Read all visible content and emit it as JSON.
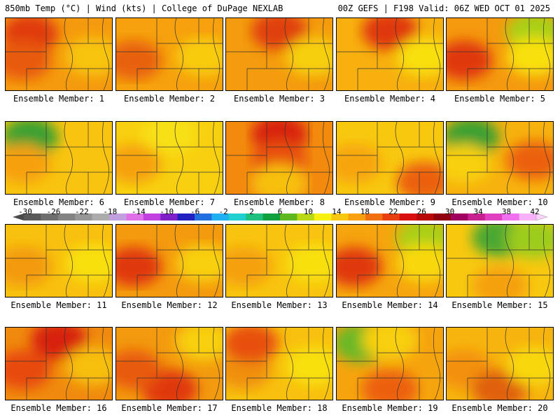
{
  "header": {
    "left": "850mb Temp (°C) | Wind (kts) | College of DuPage NEXLAB",
    "right": "00Z GEFS | F198 Valid: 06Z WED OCT 01 2025"
  },
  "label_prefix": "Ensemble Member: ",
  "members": [
    {
      "id": "1",
      "label": "Ensemble Member: 1",
      "base": "#f59a0e",
      "blobs": [
        [
          "#e03a10",
          "NW"
        ],
        [
          "#e85a10",
          "W"
        ],
        [
          "#f7c510",
          "E"
        ]
      ]
    },
    {
      "id": "2",
      "label": "Ensemble Member: 2",
      "base": "#f6a10d",
      "blobs": [
        [
          "#e8600f",
          "W"
        ],
        [
          "#f8cc10",
          "E"
        ]
      ]
    },
    {
      "id": "3",
      "label": "Ensemble Member: 3",
      "base": "#f49c0d",
      "blobs": [
        [
          "#e0400f",
          "N"
        ],
        [
          "#f7d010",
          "E"
        ]
      ]
    },
    {
      "id": "4",
      "label": "Ensemble Member: 4",
      "base": "#f7b00e",
      "blobs": [
        [
          "#e0380f",
          "N"
        ],
        [
          "#f8e010",
          "E"
        ]
      ]
    },
    {
      "id": "5",
      "label": "Ensemble Member: 5",
      "base": "#f59a0e",
      "blobs": [
        [
          "#e0380f",
          "W"
        ],
        [
          "#a8d018",
          "NE"
        ],
        [
          "#f8e010",
          "E"
        ]
      ]
    },
    {
      "id": "6",
      "label": "Ensemble Member: 6",
      "base": "#f8c40f",
      "blobs": [
        [
          "#3aa030",
          "NW"
        ],
        [
          "#f7a00e",
          "W"
        ]
      ]
    },
    {
      "id": "7",
      "label": "Ensemble Member: 7",
      "base": "#f8d010",
      "blobs": [
        [
          "#f5a00e",
          "W"
        ],
        [
          "#f8e018",
          "N"
        ]
      ]
    },
    {
      "id": "8",
      "label": "Ensemble Member: 8",
      "base": "#f38a0e",
      "blobs": [
        [
          "#d8200f",
          "N"
        ],
        [
          "#e8500f",
          "C"
        ],
        [
          "#f7c010",
          "S"
        ]
      ]
    },
    {
      "id": "9",
      "label": "Ensemble Member: 9",
      "base": "#f8c80f",
      "blobs": [
        [
          "#ec6010",
          "SE"
        ],
        [
          "#f7a50d",
          "W"
        ]
      ]
    },
    {
      "id": "10",
      "label": "Ensemble Member: 10",
      "base": "#f7b20e",
      "blobs": [
        [
          "#3aa030",
          "NW"
        ],
        [
          "#f8d010",
          "W"
        ],
        [
          "#ec6010",
          "E"
        ]
      ]
    },
    {
      "id": "11",
      "label": "Ensemble Member: 11",
      "base": "#f8c00f",
      "blobs": [
        [
          "#f39a0d",
          "W"
        ],
        [
          "#f8e010",
          "E"
        ]
      ]
    },
    {
      "id": "12",
      "label": "Ensemble Member: 12",
      "base": "#f49a0e",
      "blobs": [
        [
          "#e0380f",
          "W"
        ],
        [
          "#f8d010",
          "E"
        ]
      ]
    },
    {
      "id": "13",
      "label": "Ensemble Member: 13",
      "base": "#f8c40f",
      "blobs": [
        [
          "#f5a00d",
          "W"
        ],
        [
          "#f8e010",
          "E"
        ]
      ]
    },
    {
      "id": "14",
      "label": "Ensemble Member: 14",
      "base": "#f6a50e",
      "blobs": [
        [
          "#e0380f",
          "W"
        ],
        [
          "#a8d018",
          "NE"
        ],
        [
          "#f8d810",
          "E"
        ]
      ]
    },
    {
      "id": "15",
      "label": "Ensemble Member: 15",
      "base": "#f8c80f",
      "blobs": [
        [
          "#4aa830",
          "N"
        ],
        [
          "#9ccc1a",
          "NE"
        ],
        [
          "#f5a00d",
          "S"
        ]
      ]
    },
    {
      "id": "16",
      "label": "Ensemble Member: 16",
      "base": "#f08a0e",
      "blobs": [
        [
          "#d8200f",
          "N"
        ],
        [
          "#e84a0f",
          "W"
        ],
        [
          "#f7c010",
          "E"
        ]
      ]
    },
    {
      "id": "17",
      "label": "Ensemble Member: 17",
      "base": "#f39a0e",
      "blobs": [
        [
          "#e0380f",
          "S"
        ],
        [
          "#e85a10",
          "W"
        ],
        [
          "#f8d010",
          "NE"
        ]
      ]
    },
    {
      "id": "18",
      "label": "Ensemble Member: 18",
      "base": "#f8c00f",
      "blobs": [
        [
          "#f09010",
          "W"
        ],
        [
          "#e8500f",
          "NW"
        ],
        [
          "#f8e010",
          "E"
        ]
      ]
    },
    {
      "id": "19",
      "label": "Ensemble Member: 19",
      "base": "#f6a40e",
      "blobs": [
        [
          "#6ab828",
          "NW"
        ],
        [
          "#f8d010",
          "N"
        ],
        [
          "#ec6010",
          "S"
        ]
      ]
    },
    {
      "id": "20",
      "label": "Ensemble Member: 20",
      "base": "#f7b40e",
      "blobs": [
        [
          "#f3900d",
          "W"
        ],
        [
          "#e0600f",
          "S"
        ],
        [
          "#f8d810",
          "E"
        ]
      ]
    }
  ],
  "colorbar": {
    "ticks": [
      "-30",
      "-26",
      "-22",
      "-18",
      "-14",
      "-10",
      "-6",
      "-2",
      "2",
      "6",
      "10",
      "14",
      "18",
      "22",
      "26",
      "30",
      "34",
      "38",
      "42"
    ],
    "colors": [
      "#5a5a5a",
      "#6e6e6e",
      "#838383",
      "#979797",
      "#acacac",
      "#c2a0e0",
      "#e070e8",
      "#c040e0",
      "#8020c8",
      "#2020c0",
      "#2070e0",
      "#20b0f0",
      "#20d0d0",
      "#20c080",
      "#10a040",
      "#60b820",
      "#b8d818",
      "#f8f010",
      "#f8c810",
      "#f8a010",
      "#f07010",
      "#e84010",
      "#d81010",
      "#b80808",
      "#900010",
      "#a00060",
      "#c82090",
      "#e040c0",
      "#f070f0",
      "#f8b0f8"
    ]
  }
}
